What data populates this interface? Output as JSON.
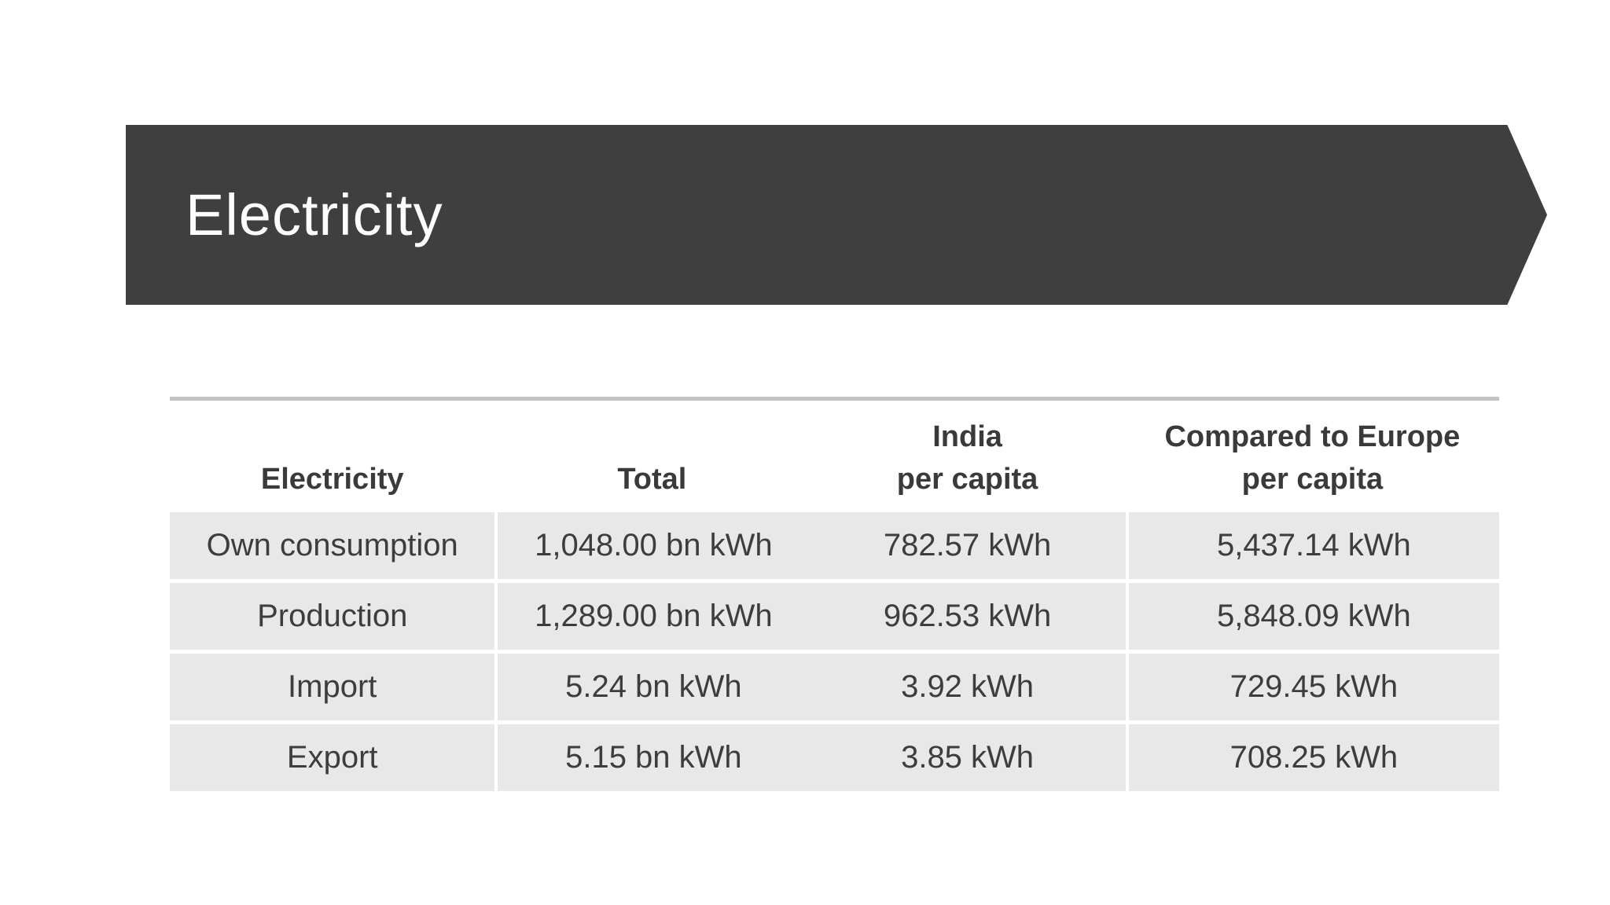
{
  "slide": {
    "title": "Electricity"
  },
  "table": {
    "columns": [
      "Electricity",
      "Total",
      "India\nper capita",
      "Compared to Europe\nper capita"
    ],
    "rows": [
      [
        "Own consumption",
        "1,048.00 bn kWh",
        "782.57 kWh",
        "5,437.14 kWh"
      ],
      [
        "Production",
        "1,289.00 bn kWh",
        "962.53 kWh",
        "5,848.09 kWh"
      ],
      [
        "Import",
        "5.24 bn kWh",
        "3.92 kWh",
        "729.45 kWh"
      ],
      [
        "Export",
        "5.15 bn kWh",
        "3.85 kWh",
        "708.25 kWh"
      ]
    ]
  },
  "theme": {
    "page_bg": "#ffffff",
    "banner_bg": "#3f3f3f",
    "banner_text": "#fcfcfc",
    "table_top_border": "#c3c3c3",
    "row_bg": "#e8e8e8",
    "header_text": "#3a3a3a",
    "cell_text": "#3d3d3d",
    "divider": "#ffffff"
  }
}
